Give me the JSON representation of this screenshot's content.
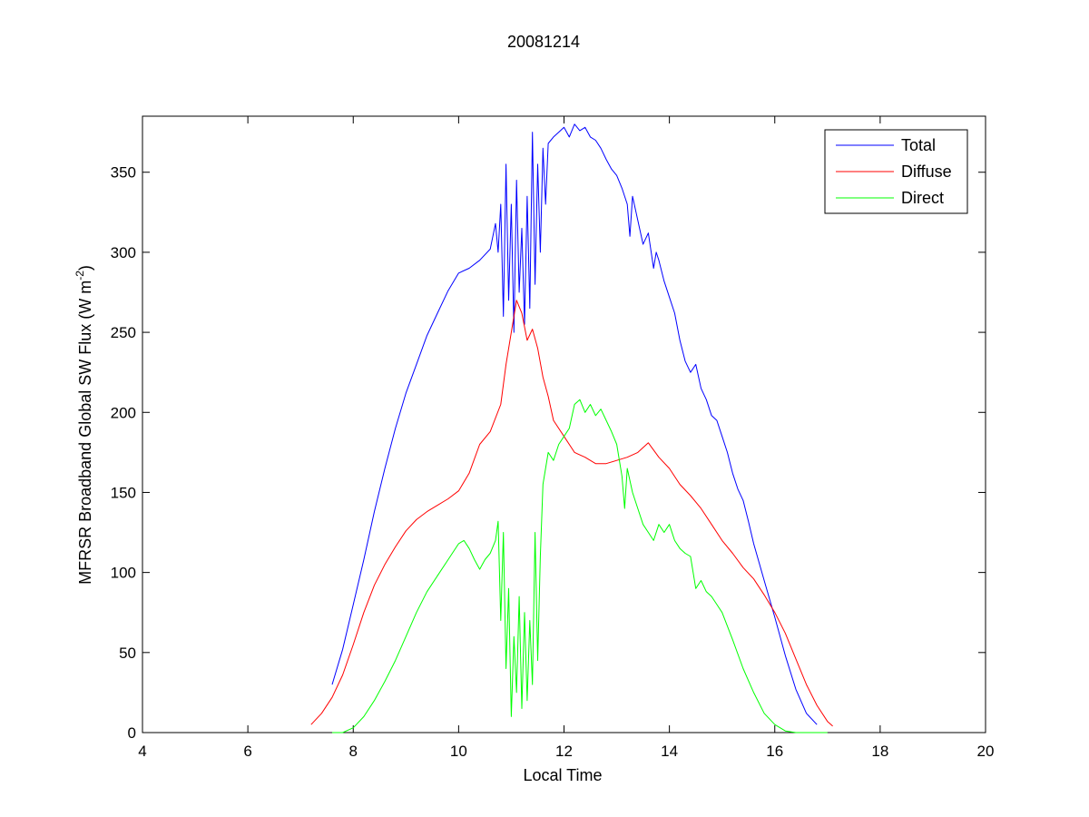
{
  "chart_data": {
    "type": "line",
    "title": "20081214",
    "xlabel": "Local Time",
    "ylabel": "MFRSR Broadband Global SW Flux (W m",
    "ylabel_sup": "-2",
    "ylabel_close": ")",
    "xlim": [
      4,
      20
    ],
    "ylim": [
      0,
      385
    ],
    "xticks": [
      4,
      6,
      8,
      10,
      12,
      14,
      16,
      18,
      20
    ],
    "yticks": [
      0,
      50,
      100,
      150,
      200,
      250,
      300,
      350
    ],
    "grid": false,
    "legend_position": "top-right",
    "series": [
      {
        "name": "Total",
        "color": "#0000ff",
        "x": [
          7.6,
          7.8,
          8.0,
          8.2,
          8.4,
          8.6,
          8.8,
          9.0,
          9.2,
          9.4,
          9.6,
          9.8,
          10.0,
          10.2,
          10.4,
          10.6,
          10.7,
          10.75,
          10.8,
          10.85,
          10.9,
          10.95,
          11.0,
          11.05,
          11.1,
          11.15,
          11.2,
          11.25,
          11.3,
          11.35,
          11.4,
          11.45,
          11.5,
          11.55,
          11.6,
          11.65,
          11.7,
          11.8,
          11.9,
          12.0,
          12.1,
          12.2,
          12.3,
          12.4,
          12.5,
          12.6,
          12.7,
          12.8,
          12.9,
          13.0,
          13.1,
          13.2,
          13.25,
          13.3,
          13.4,
          13.5,
          13.6,
          13.7,
          13.75,
          13.8,
          13.9,
          14.0,
          14.1,
          14.2,
          14.3,
          14.4,
          14.5,
          14.6,
          14.7,
          14.8,
          14.9,
          15.0,
          15.1,
          15.2,
          15.3,
          15.4,
          15.5,
          15.6,
          15.8,
          16.0,
          16.2,
          16.4,
          16.6,
          16.8
        ],
        "values": [
          30,
          52,
          80,
          108,
          138,
          165,
          190,
          212,
          230,
          248,
          262,
          276,
          287,
          290,
          295,
          302,
          318,
          300,
          330,
          260,
          355,
          270,
          330,
          250,
          345,
          275,
          315,
          255,
          335,
          265,
          375,
          280,
          355,
          300,
          365,
          330,
          368,
          372,
          375,
          378,
          372,
          380,
          376,
          378,
          372,
          370,
          365,
          358,
          352,
          348,
          340,
          330,
          310,
          335,
          320,
          305,
          312,
          290,
          300,
          295,
          282,
          272,
          262,
          245,
          232,
          225,
          230,
          215,
          208,
          198,
          195,
          185,
          175,
          162,
          152,
          145,
          132,
          118,
          95,
          72,
          48,
          27,
          12,
          5
        ]
      },
      {
        "name": "Diffuse",
        "color": "#ff0000",
        "x": [
          7.2,
          7.4,
          7.6,
          7.8,
          8.0,
          8.2,
          8.4,
          8.6,
          8.8,
          9.0,
          9.2,
          9.4,
          9.6,
          9.8,
          10.0,
          10.2,
          10.4,
          10.6,
          10.8,
          10.9,
          11.0,
          11.1,
          11.2,
          11.3,
          11.4,
          11.5,
          11.6,
          11.7,
          11.8,
          12.0,
          12.2,
          12.4,
          12.6,
          12.8,
          13.0,
          13.2,
          13.4,
          13.6,
          13.8,
          14.0,
          14.2,
          14.4,
          14.6,
          14.8,
          15.0,
          15.2,
          15.4,
          15.6,
          15.8,
          16.0,
          16.2,
          16.4,
          16.6,
          16.8,
          17.0,
          17.1
        ],
        "values": [
          5,
          12,
          22,
          36,
          55,
          75,
          92,
          105,
          116,
          126,
          133,
          138,
          142,
          146,
          151,
          162,
          180,
          188,
          205,
          230,
          250,
          270,
          262,
          245,
          252,
          240,
          222,
          210,
          195,
          185,
          175,
          172,
          168,
          168,
          170,
          172,
          175,
          181,
          172,
          165,
          155,
          148,
          140,
          130,
          120,
          112,
          103,
          96,
          86,
          75,
          62,
          46,
          30,
          17,
          7,
          4
        ]
      },
      {
        "name": "Direct",
        "color": "#00ff00",
        "x": [
          7.6,
          7.8,
          8.0,
          8.2,
          8.4,
          8.6,
          8.8,
          9.0,
          9.2,
          9.4,
          9.6,
          9.8,
          10.0,
          10.1,
          10.2,
          10.3,
          10.4,
          10.5,
          10.6,
          10.7,
          10.75,
          10.8,
          10.85,
          10.9,
          10.95,
          11.0,
          11.05,
          11.1,
          11.15,
          11.2,
          11.25,
          11.3,
          11.35,
          11.4,
          11.45,
          11.5,
          11.55,
          11.6,
          11.65,
          11.7,
          11.8,
          11.9,
          12.0,
          12.1,
          12.2,
          12.3,
          12.4,
          12.5,
          12.6,
          12.7,
          12.8,
          12.9,
          13.0,
          13.1,
          13.15,
          13.2,
          13.3,
          13.4,
          13.5,
          13.6,
          13.7,
          13.8,
          13.9,
          14.0,
          14.1,
          14.2,
          14.3,
          14.4,
          14.5,
          14.6,
          14.7,
          14.8,
          14.9,
          15.0,
          15.2,
          15.4,
          15.6,
          15.8,
          16.0,
          16.2,
          16.4,
          16.6,
          16.8,
          17.0
        ],
        "values": [
          0,
          0,
          3,
          10,
          20,
          32,
          45,
          60,
          75,
          88,
          98,
          108,
          118,
          120,
          115,
          108,
          102,
          108,
          112,
          120,
          132,
          70,
          125,
          40,
          90,
          10,
          60,
          25,
          85,
          15,
          75,
          20,
          70,
          30,
          125,
          45,
          110,
          155,
          165,
          175,
          170,
          180,
          185,
          190,
          205,
          208,
          200,
          205,
          198,
          202,
          195,
          188,
          180,
          160,
          140,
          165,
          150,
          140,
          130,
          125,
          120,
          130,
          125,
          130,
          120,
          115,
          112,
          110,
          90,
          95,
          88,
          85,
          80,
          75,
          58,
          40,
          25,
          12,
          5,
          1,
          0,
          0,
          0,
          0
        ]
      }
    ]
  }
}
